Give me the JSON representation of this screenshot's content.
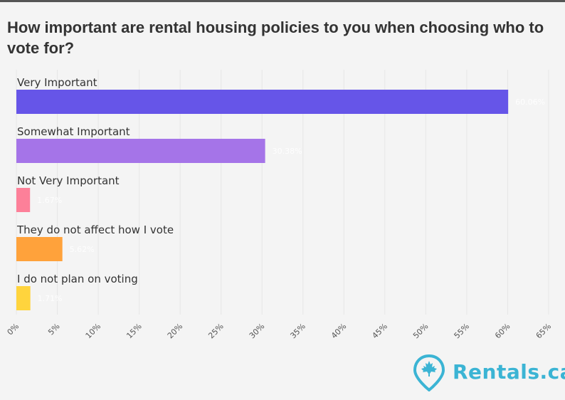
{
  "title": "How important are rental housing policies to you when choosing who to vote for?",
  "logo_text": "Rentals.ca",
  "logo_icon": "maple-leaf-pin-icon",
  "chart_data": {
    "type": "bar",
    "orientation": "horizontal",
    "title": "How important are rental housing policies to you when choosing who to vote for?",
    "categories": [
      "Very Important",
      "Somewhat Important",
      "Not Very Important",
      "They do not affect how I vote",
      "I do not plan on voting"
    ],
    "values": [
      60.06,
      30.38,
      1.67,
      5.62,
      1.71
    ],
    "value_labels": [
      "60.06%",
      "30.38%",
      "1.67%",
      "5.62%",
      "1.71%"
    ],
    "colors": [
      "#6655e8",
      "#a574e8",
      "#fd8099",
      "#ffa23b",
      "#ffd43d"
    ],
    "xlim": [
      0,
      65
    ],
    "x_ticks": [
      "0%",
      "5%",
      "10%",
      "15%",
      "20%",
      "25%",
      "30%",
      "35%",
      "40%",
      "45%",
      "50%",
      "55%",
      "60%",
      "65%"
    ],
    "grid": true,
    "legend": "none"
  }
}
